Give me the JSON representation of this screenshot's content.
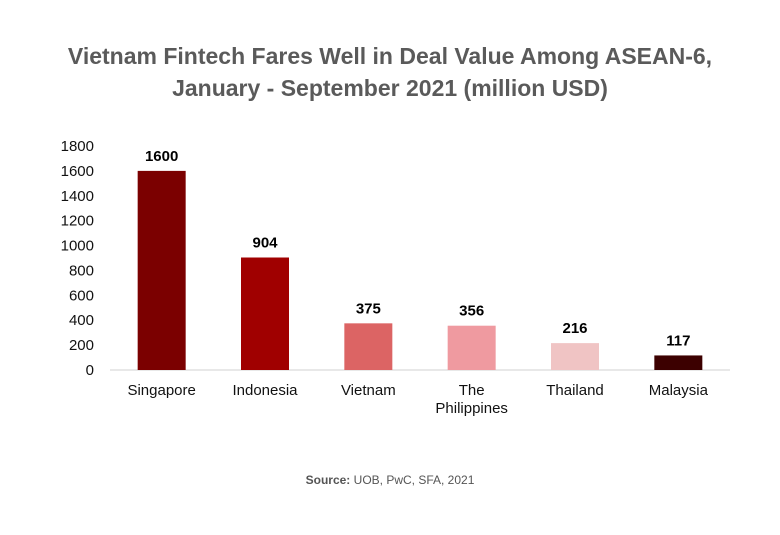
{
  "chart_data": {
    "type": "bar",
    "title_line1": "Vietnam Fintech Fares Well in Deal Value Among ASEAN-6,",
    "title_line2": "January - September 2021 (million USD)",
    "categories": [
      "Singapore",
      "Indonesia",
      "Vietnam",
      "The Philippines",
      "Thailand",
      "Malaysia"
    ],
    "category_lines": [
      [
        "Singapore"
      ],
      [
        "Indonesia"
      ],
      [
        "Vietnam"
      ],
      [
        "The",
        "Philippines"
      ],
      [
        "Thailand"
      ],
      [
        "Malaysia"
      ]
    ],
    "values": [
      1600,
      904,
      375,
      356,
      216,
      117
    ],
    "colors": [
      "#7b0000",
      "#a00000",
      "#dc6464",
      "#ef9aa0",
      "#f0c4c4",
      "#3c0000"
    ],
    "ylim": [
      0,
      1800
    ],
    "yticks": [
      0,
      200,
      400,
      600,
      800,
      1000,
      1200,
      1400,
      1600,
      1800
    ],
    "ytick_labels": [
      "0",
      "200",
      "400",
      "600",
      "800",
      "1000",
      "1200",
      "1400",
      "1600",
      "1800"
    ],
    "xlabel": "",
    "ylabel": "",
    "grid": false,
    "legend": "none"
  },
  "source": {
    "label": "Source:",
    "text": " UOB, PwC, SFA, 2021"
  }
}
